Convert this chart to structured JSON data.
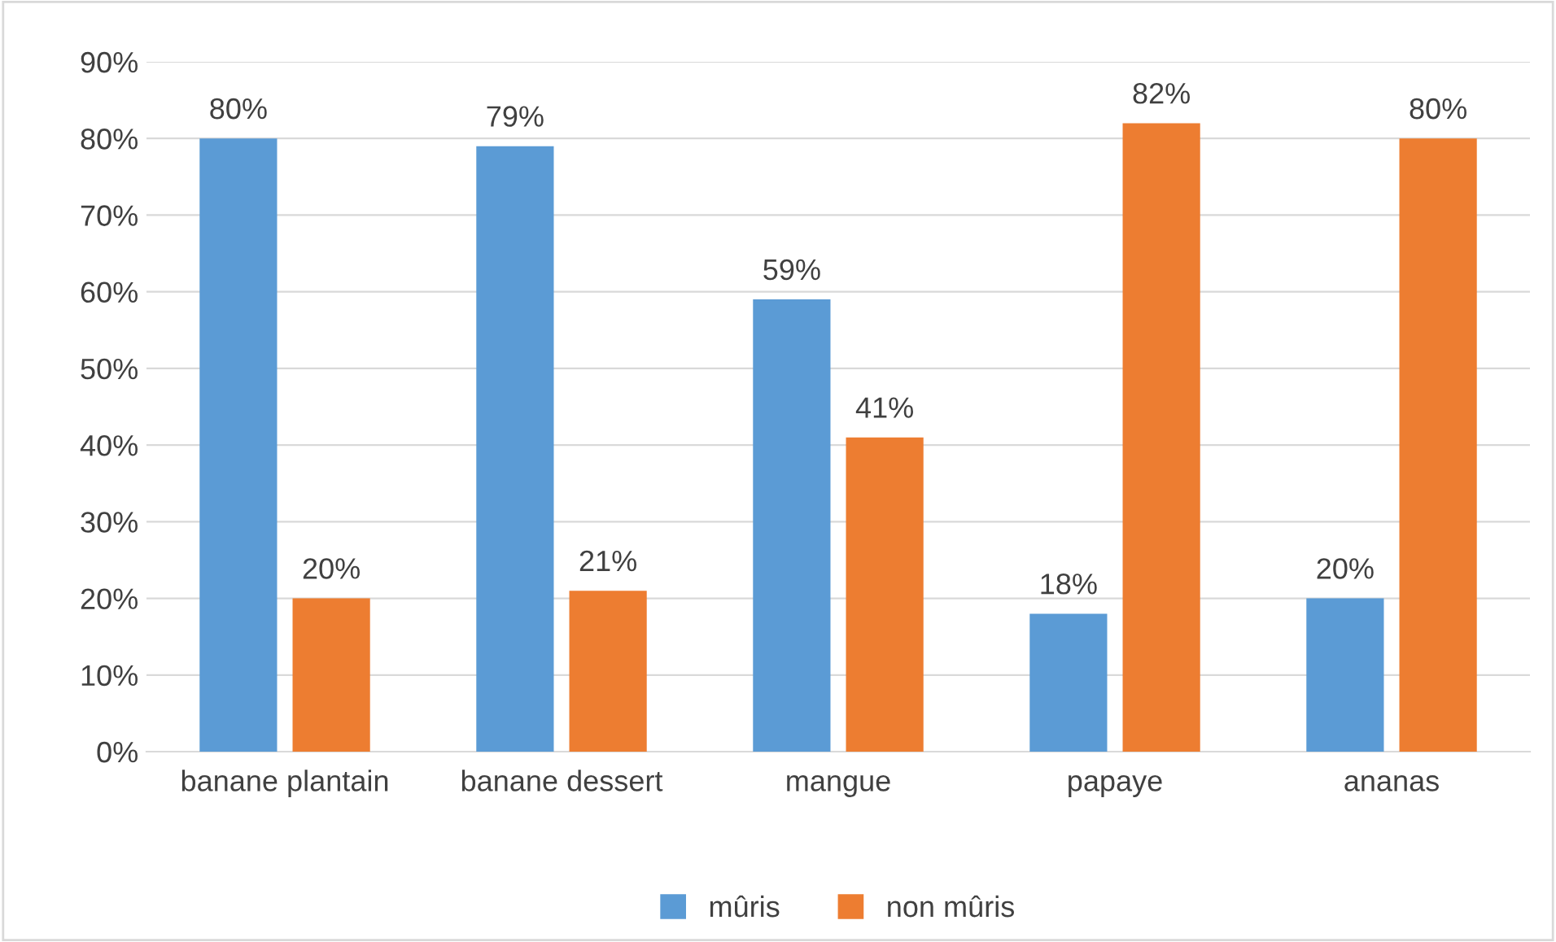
{
  "chart_data": {
    "type": "bar",
    "categories": [
      "banane plantain",
      "banane dessert",
      "mangue",
      "papaye",
      "ananas"
    ],
    "series": [
      {
        "name": "mûris",
        "color": "#5b9bd5",
        "values": [
          80,
          79,
          59,
          18,
          20
        ],
        "value_labels": [
          "80%",
          "79%",
          "59%",
          "18%",
          "20%"
        ]
      },
      {
        "name": "non mûris",
        "color": "#ed7d31",
        "values": [
          20,
          21,
          41,
          82,
          80
        ],
        "value_labels": [
          "20%",
          "21%",
          "41%",
          "82%",
          "80%"
        ]
      }
    ],
    "ylim": [
      0,
      90
    ],
    "yticks": [
      {
        "value": 0,
        "label": "0%"
      },
      {
        "value": 10,
        "label": "10%"
      },
      {
        "value": 20,
        "label": "20%"
      },
      {
        "value": 30,
        "label": "30%"
      },
      {
        "value": 40,
        "label": "40%"
      },
      {
        "value": 50,
        "label": "50%"
      },
      {
        "value": 60,
        "label": "60%"
      },
      {
        "value": 70,
        "label": "70%"
      },
      {
        "value": 80,
        "label": "80%"
      },
      {
        "value": 90,
        "label": "90%"
      }
    ],
    "grid": "y",
    "legend": "bottom"
  }
}
